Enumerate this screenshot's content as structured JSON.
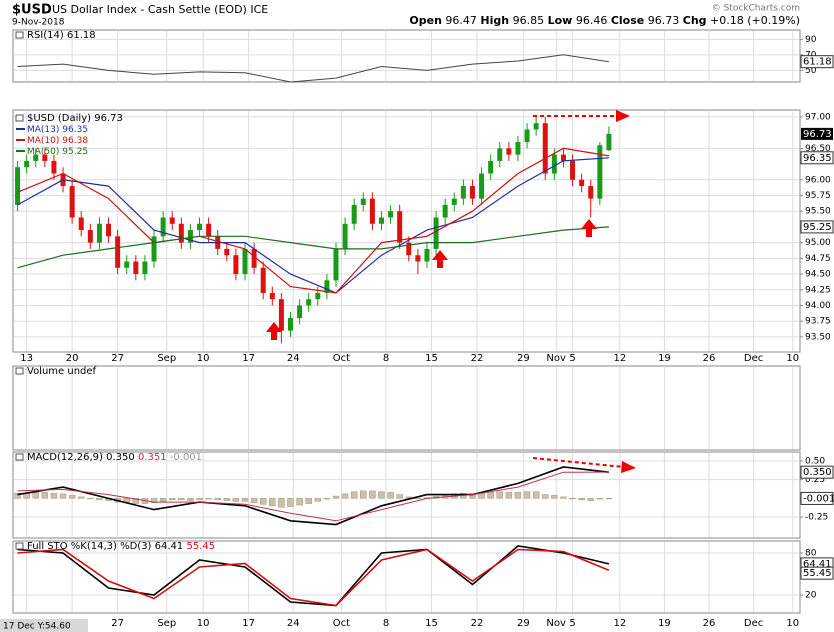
{
  "header": {
    "symbol": "$USD",
    "name": "US Dollar Index - Cash Settle (EOD) ICE",
    "date": "9-Nov-2018",
    "quote": [
      {
        "label": "Open",
        "value": 96.47
      },
      {
        "label": "High",
        "value": 96.85
      },
      {
        "label": "Low",
        "value": 96.46
      },
      {
        "label": "Close",
        "value": 96.73
      },
      {
        "label": "Chg",
        "value": "+0.18 (+0.19%)"
      }
    ],
    "credit": "© StockCharts.com"
  },
  "cursor_readout": "17 Dec Y:54.60",
  "chart_data": [
    {
      "type": "line",
      "ylim": [
        35,
        102
      ],
      "yticks": [
        90,
        70,
        50
      ],
      "series": [
        {
          "name": "RSI(14)",
          "color": "#444",
          "x": [
            0,
            5,
            10,
            15,
            20,
            25,
            30,
            35,
            40,
            45,
            50,
            55,
            60,
            65
          ],
          "values": [
            55,
            58,
            50,
            45,
            48,
            47,
            35,
            40,
            55,
            50,
            58,
            62,
            70,
            61.18
          ]
        }
      ]
    },
    {
      "type": "candlestick",
      "title": "$USD (Daily)",
      "up_color": "#1a9a1a",
      "down_color": "#dd1111",
      "xlim": [
        -0.5,
        86
      ],
      "xticks": [
        {
          "value": 1,
          "label": "13"
        },
        {
          "value": 6,
          "label": "20"
        },
        {
          "value": 11,
          "label": "27"
        },
        {
          "value": 16.4,
          "label": "Sep"
        },
        {
          "value": 20.4,
          "label": "10"
        },
        {
          "value": 25.4,
          "label": "17"
        },
        {
          "value": 30.3,
          "label": "24"
        },
        {
          "value": 35.6,
          "label": "Oct"
        },
        {
          "value": 40.5,
          "label": "8"
        },
        {
          "value": 45.5,
          "label": "15"
        },
        {
          "value": 50.5,
          "label": "22"
        },
        {
          "value": 55.6,
          "label": "29"
        },
        {
          "value": 59.2,
          "label": "Nov"
        },
        {
          "value": 61,
          "label": "5"
        },
        {
          "value": 66.2,
          "label": "12"
        },
        {
          "value": 71.1,
          "label": "19"
        },
        {
          "value": 76,
          "label": "26"
        },
        {
          "value": 80.9,
          "label": "Dec"
        },
        {
          "value": 85.2,
          "label": "10"
        }
      ],
      "ylim": [
        93.26,
        97.11
      ],
      "yticks": [
        {
          "value": 93.5,
          "label": "93.50"
        },
        {
          "value": 93.75,
          "label": "93.75"
        },
        {
          "value": 94,
          "label": "94.00"
        },
        {
          "value": 94.25,
          "label": "94.25"
        },
        {
          "value": 94.5,
          "label": "94.50"
        },
        {
          "value": 94.75,
          "label": "94.75"
        },
        {
          "value": 95,
          "label": "95.00"
        },
        {
          "value": 95.5,
          "label": "95.50"
        },
        {
          "value": 95.75,
          "label": "95.75"
        },
        {
          "value": 96,
          "label": "96.00"
        },
        {
          "value": 96.5,
          "label": "96.50"
        },
        {
          "value": 97,
          "label": "97.00"
        }
      ],
      "x": [
        0,
        1,
        2,
        3,
        4,
        5,
        6,
        7,
        8,
        9,
        10,
        11,
        12,
        13,
        14,
        15,
        16,
        17,
        18,
        19,
        20,
        21,
        22,
        23,
        24,
        25,
        26,
        27,
        28,
        29,
        30,
        31,
        32,
        33,
        34,
        35,
        36,
        37,
        38,
        39,
        40,
        41,
        42,
        43,
        44,
        45,
        46,
        47,
        48,
        49,
        50,
        51,
        52,
        53,
        54,
        55,
        56,
        57,
        58,
        59,
        60,
        61,
        62,
        63,
        64,
        65
      ],
      "open": [
        95.6,
        96.2,
        96.3,
        96.4,
        96.3,
        96.1,
        95.9,
        95.4,
        95.2,
        95.0,
        95.3,
        95.1,
        94.6,
        94.7,
        94.5,
        94.7,
        95.1,
        95.4,
        95.3,
        95.0,
        95.2,
        95.3,
        95.1,
        94.9,
        94.8,
        94.5,
        94.9,
        94.6,
        94.2,
        94.1,
        93.6,
        93.8,
        94.0,
        94.1,
        94.2,
        94.4,
        94.9,
        95.3,
        95.6,
        95.7,
        95.3,
        95.4,
        95.5,
        95.0,
        94.8,
        94.7,
        94.9,
        95.4,
        95.6,
        95.7,
        95.9,
        95.7,
        96.1,
        96.3,
        96.5,
        96.4,
        96.6,
        96.8,
        96.9,
        96.1,
        96.4,
        96.3,
        96.0,
        95.9,
        95.7,
        96.47
      ],
      "high": [
        96.3,
        96.4,
        96.5,
        96.5,
        96.4,
        96.2,
        96.0,
        95.5,
        95.3,
        95.4,
        95.4,
        95.2,
        94.8,
        94.8,
        94.8,
        95.2,
        95.5,
        95.5,
        95.4,
        95.3,
        95.4,
        95.4,
        95.2,
        95.0,
        94.9,
        95.0,
        95.0,
        94.7,
        94.3,
        94.2,
        93.9,
        94.1,
        94.2,
        94.3,
        94.5,
        95.0,
        95.4,
        95.7,
        95.8,
        95.8,
        95.5,
        95.6,
        95.6,
        95.1,
        94.9,
        95.0,
        95.5,
        95.7,
        95.8,
        96.0,
        96.0,
        96.2,
        96.4,
        96.6,
        96.6,
        96.7,
        96.9,
        97.0,
        97.0,
        96.5,
        96.5,
        96.4,
        96.1,
        96.0,
        96.6,
        96.85
      ],
      "low": [
        95.5,
        96.1,
        96.2,
        96.2,
        96.0,
        95.8,
        95.3,
        95.1,
        94.9,
        94.9,
        95.0,
        94.5,
        94.5,
        94.4,
        94.4,
        94.6,
        95.0,
        95.2,
        94.9,
        94.9,
        95.1,
        95.0,
        94.8,
        94.7,
        94.4,
        94.4,
        94.5,
        94.1,
        94.0,
        93.4,
        93.5,
        93.7,
        93.9,
        94.0,
        94.1,
        94.3,
        94.8,
        95.2,
        95.5,
        95.2,
        95.2,
        95.3,
        94.9,
        94.7,
        94.5,
        94.6,
        94.8,
        95.3,
        95.5,
        95.6,
        95.6,
        95.6,
        96.0,
        96.2,
        96.3,
        96.3,
        96.5,
        96.7,
        96.0,
        96.0,
        96.2,
        95.9,
        95.8,
        95.4,
        95.6,
        96.46
      ],
      "close": [
        96.2,
        96.3,
        96.4,
        96.3,
        96.1,
        95.9,
        95.4,
        95.2,
        95.0,
        95.3,
        95.1,
        94.6,
        94.7,
        94.5,
        94.7,
        95.1,
        95.4,
        95.3,
        95.0,
        95.2,
        95.3,
        95.1,
        94.9,
        94.8,
        94.5,
        94.9,
        94.6,
        94.2,
        94.1,
        93.6,
        93.8,
        94.0,
        94.1,
        94.2,
        94.4,
        94.9,
        95.3,
        95.6,
        95.7,
        95.3,
        95.4,
        95.5,
        95.0,
        94.8,
        94.7,
        94.9,
        95.4,
        95.6,
        95.7,
        95.9,
        95.7,
        96.1,
        96.3,
        96.5,
        96.4,
        96.6,
        96.8,
        96.9,
        96.1,
        96.4,
        96.3,
        96.0,
        95.9,
        95.7,
        96.55,
        96.73
      ],
      "series": [
        {
          "name": "MA(13)",
          "color": "#1f2fa0",
          "x": [
            0,
            5,
            10,
            15,
            20,
            25,
            30,
            35,
            40,
            45,
            50,
            55,
            60,
            65
          ],
          "values": [
            95.6,
            96.0,
            95.9,
            95.2,
            95.0,
            95.0,
            94.5,
            94.2,
            94.8,
            95.2,
            95.4,
            95.9,
            96.3,
            96.35
          ]
        },
        {
          "name": "MA(10)",
          "color": "#d01010",
          "x": [
            0,
            5,
            10,
            15,
            20,
            25,
            30,
            35,
            40,
            45,
            50,
            55,
            60,
            65
          ],
          "values": [
            95.8,
            96.1,
            95.7,
            95.0,
            95.1,
            94.9,
            94.3,
            94.2,
            95.0,
            95.1,
            95.5,
            96.1,
            96.5,
            96.38
          ]
        },
        {
          "name": "MA(50)",
          "color": "#1d6e1d",
          "x": [
            0,
            5,
            10,
            15,
            20,
            25,
            30,
            35,
            40,
            45,
            50,
            55,
            60,
            65
          ],
          "values": [
            94.6,
            94.8,
            94.9,
            95.0,
            95.1,
            95.1,
            95.0,
            94.9,
            94.9,
            95.0,
            95.0,
            95.1,
            95.2,
            95.25
          ]
        }
      ]
    },
    {
      "type": "volume",
      "title": "Volume undef"
    },
    {
      "type": "macd",
      "ylim": [
        -0.53,
        0.62
      ],
      "yticks": [
        {
          "value": 0.5,
          "label": "0.50"
        },
        {
          "value": 0.25,
          "label": "0.25"
        },
        {
          "value": -0.25,
          "label": "-0.25"
        }
      ],
      "readout": [
        {
          "value": 0.35,
          "label": "0.350"
        },
        0.351,
        -0.001
      ],
      "series": [
        {
          "name": "MACD(12,26,9)",
          "color": "#000",
          "x": [
            0,
            5,
            10,
            15,
            20,
            25,
            30,
            35,
            40,
            45,
            50,
            55,
            60,
            65
          ],
          "values": [
            0.05,
            0.15,
            0.0,
            -0.15,
            -0.05,
            -0.1,
            -0.3,
            -0.35,
            -0.1,
            0.05,
            0.05,
            0.2,
            0.42,
            0.35
          ]
        },
        {
          "color": "#c0304a",
          "x": [
            0,
            5,
            10,
            15,
            20,
            25,
            30,
            35,
            40,
            45,
            50,
            55,
            60,
            65
          ],
          "values": [
            0.1,
            0.12,
            0.05,
            -0.05,
            -0.05,
            -0.08,
            -0.2,
            -0.3,
            -0.15,
            0.0,
            0.05,
            0.15,
            0.35,
            0.351
          ]
        },
        {
          "color": "#c8c0a8",
          "x": [
            0,
            1,
            2,
            3,
            4,
            5,
            6,
            7,
            8,
            9,
            10,
            11,
            12,
            13,
            14,
            15,
            16,
            17,
            18,
            19,
            20,
            21,
            22,
            23,
            24,
            25,
            26,
            27,
            28,
            29,
            30,
            31,
            32,
            33,
            34,
            35,
            36,
            37,
            38,
            39,
            40,
            41,
            42,
            43,
            44,
            45,
            46,
            47,
            48,
            49,
            50,
            51,
            52,
            53,
            54,
            55,
            56,
            57,
            58,
            59,
            60,
            61,
            62,
            63,
            64,
            65
          ],
          "values": [
            0.07,
            0.07,
            0.08,
            0.08,
            0.07,
            0.06,
            0.04,
            0.02,
            0.0,
            -0.02,
            -0.03,
            -0.05,
            -0.06,
            -0.07,
            -0.07,
            -0.06,
            -0.04,
            -0.02,
            -0.02,
            -0.03,
            -0.02,
            -0.01,
            -0.02,
            -0.03,
            -0.04,
            -0.04,
            -0.06,
            -0.08,
            -0.1,
            -0.12,
            -0.11,
            -0.09,
            -0.07,
            -0.04,
            -0.01,
            0.03,
            0.06,
            0.09,
            0.1,
            0.1,
            0.09,
            0.08,
            0.05,
            0.02,
            0.0,
            0.01,
            0.03,
            0.05,
            0.06,
            0.07,
            0.06,
            0.07,
            0.08,
            0.09,
            0.08,
            0.08,
            0.09,
            0.09,
            0.05,
            0.04,
            0.02,
            0.0,
            -0.02,
            -0.03,
            -0.01,
            -0.001
          ]
        }
      ]
    },
    {
      "type": "line",
      "title": "Full STO %K(14,3) %D(3)",
      "ylim": [
        -5.7,
        97.1
      ],
      "yticks": [
        80,
        20
      ],
      "series": [
        {
          "color": "#000",
          "x": [
            0,
            5,
            10,
            15,
            20,
            25,
            30,
            35,
            40,
            45,
            50,
            55,
            60,
            65
          ],
          "values": [
            85,
            80,
            30,
            20,
            70,
            60,
            10,
            5,
            80,
            85,
            35,
            90,
            80,
            64.41
          ]
        },
        {
          "color": "#d01010",
          "x": [
            0,
            5,
            10,
            15,
            20,
            25,
            30,
            35,
            40,
            45,
            50,
            55,
            60,
            65
          ],
          "values": [
            80,
            85,
            40,
            15,
            60,
            65,
            15,
            5,
            70,
            85,
            40,
            85,
            82,
            55.45
          ]
        }
      ]
    }
  ]
}
